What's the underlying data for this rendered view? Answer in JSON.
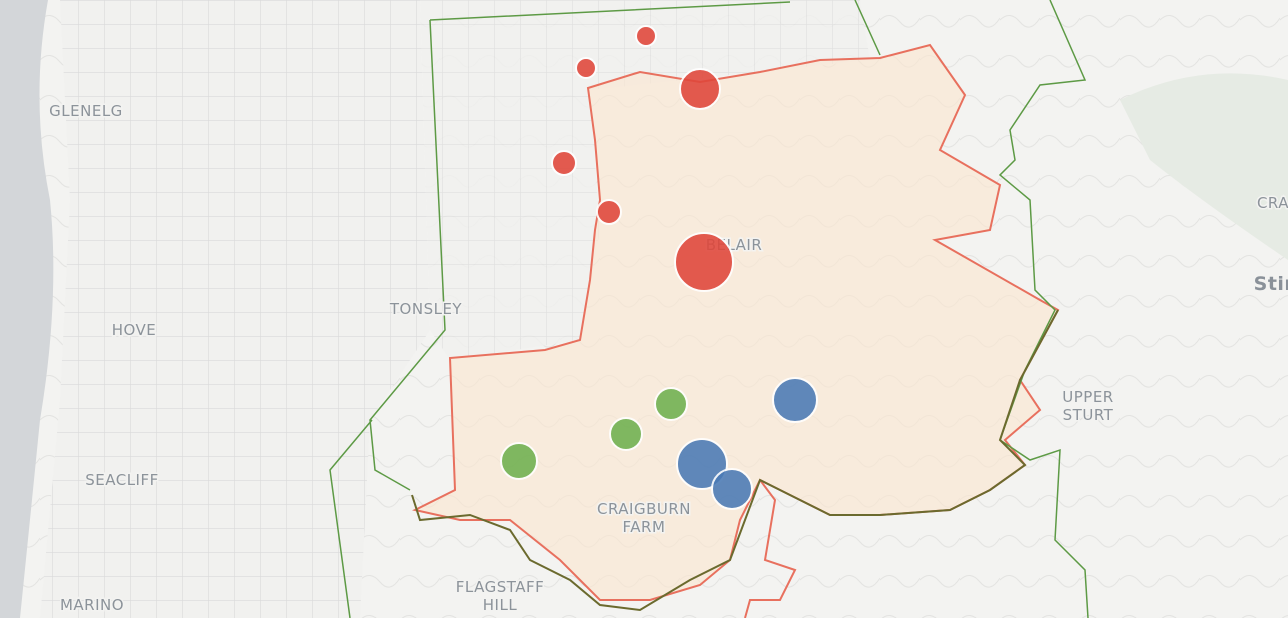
{
  "places": [
    {
      "lines": [
        "GLENELG"
      ]
    },
    {
      "lines": [
        "HOVE"
      ]
    },
    {
      "lines": [
        "SEACLIFF"
      ]
    },
    {
      "lines": [
        "MARINO"
      ]
    },
    {
      "lines": [
        "TONSLEY"
      ]
    },
    {
      "lines": [
        "BELAIR"
      ]
    },
    {
      "lines": [
        "CRAIGBURN",
        "FARM"
      ]
    },
    {
      "lines": [
        "FLAGSTAFF",
        "HILL"
      ]
    },
    {
      "lines": [
        "UPPER",
        "STURT"
      ]
    },
    {
      "lines": [
        "CRAFER"
      ]
    },
    {
      "lines": [
        "Stirlin"
      ]
    }
  ]
}
